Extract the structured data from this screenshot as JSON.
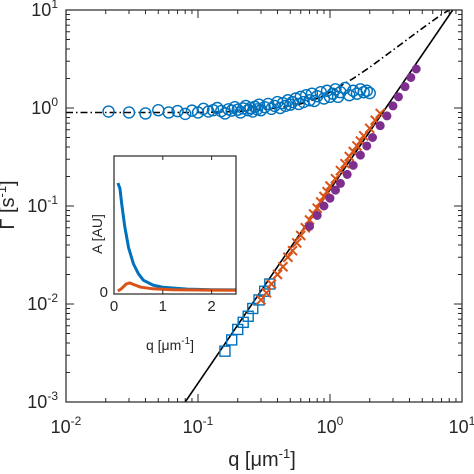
{
  "chart_data": [
    {
      "type": "scatter",
      "xscale": "log",
      "yscale": "log",
      "xlim": [
        0.01,
        10
      ],
      "ylim": [
        0.001,
        10
      ],
      "xlabel": "q [μm",
      "xlabel_sup": "-1",
      "xlabel_close": "]",
      "ylabel": "Γ [s",
      "ylabel_sup": "-1",
      "ylabel_close": "]",
      "x_ticks": [
        {
          "base": "10",
          "exp": "-2",
          "value": 0.01
        },
        {
          "base": "10",
          "exp": "-1",
          "value": 0.1
        },
        {
          "base": "10",
          "exp": "0",
          "value": 1
        },
        {
          "base": "10",
          "exp": "1",
          "value": 10
        }
      ],
      "y_ticks": [
        {
          "base": "10",
          "exp": "-3",
          "value": 0.001
        },
        {
          "base": "10",
          "exp": "-2",
          "value": 0.01
        },
        {
          "base": "10",
          "exp": "-1",
          "value": 0.1
        },
        {
          "base": "10",
          "exp": "0",
          "value": 1
        },
        {
          "base": "10",
          "exp": "1",
          "value": 10
        }
      ],
      "series": [
        {
          "marker": "circle",
          "color": "#0072BD",
          "points": [
            [
              0.021,
              0.92
            ],
            [
              0.03,
              0.9
            ],
            [
              0.04,
              0.88
            ],
            [
              0.05,
              0.95
            ],
            [
              0.06,
              0.9
            ],
            [
              0.07,
              0.93
            ],
            [
              0.08,
              0.87
            ],
            [
              0.09,
              0.94
            ],
            [
              0.1,
              0.9
            ],
            [
              0.11,
              0.98
            ],
            [
              0.12,
              0.92
            ],
            [
              0.13,
              0.95
            ],
            [
              0.14,
              1.0
            ],
            [
              0.15,
              0.93
            ],
            [
              0.16,
              0.88
            ],
            [
              0.17,
              0.97
            ],
            [
              0.18,
              0.94
            ],
            [
              0.19,
              1.02
            ],
            [
              0.2,
              0.96
            ],
            [
              0.21,
              0.9
            ],
            [
              0.22,
              0.99
            ],
            [
              0.23,
              1.05
            ],
            [
              0.24,
              0.95
            ],
            [
              0.25,
              1.0
            ],
            [
              0.26,
              0.92
            ],
            [
              0.27,
              1.03
            ],
            [
              0.28,
              0.97
            ],
            [
              0.29,
              1.08
            ],
            [
              0.3,
              0.95
            ],
            [
              0.32,
              1.02
            ],
            [
              0.34,
              1.1
            ],
            [
              0.36,
              0.98
            ],
            [
              0.38,
              1.05
            ],
            [
              0.4,
              1.15
            ],
            [
              0.42,
              1.0
            ],
            [
              0.44,
              1.12
            ],
            [
              0.46,
              1.05
            ],
            [
              0.48,
              1.2
            ],
            [
              0.5,
              1.08
            ],
            [
              0.52,
              1.15
            ],
            [
              0.55,
              1.25
            ],
            [
              0.58,
              1.1
            ],
            [
              0.6,
              1.3
            ],
            [
              0.63,
              1.15
            ],
            [
              0.66,
              1.35
            ],
            [
              0.7,
              1.2
            ],
            [
              0.73,
              1.4
            ],
            [
              0.76,
              1.18
            ],
            [
              0.8,
              1.32
            ],
            [
              0.85,
              1.45
            ],
            [
              0.9,
              1.25
            ],
            [
              0.95,
              1.5
            ],
            [
              1.0,
              1.3
            ],
            [
              1.05,
              1.4
            ],
            [
              1.1,
              1.55
            ],
            [
              1.15,
              1.3
            ],
            [
              1.2,
              1.45
            ],
            [
              1.3,
              1.6
            ],
            [
              1.4,
              1.35
            ],
            [
              1.5,
              1.5
            ],
            [
              1.6,
              1.4
            ],
            [
              1.7,
              1.55
            ],
            [
              1.8,
              1.45
            ],
            [
              1.9,
              1.5
            ],
            [
              2.0,
              1.42
            ]
          ]
        },
        {
          "marker": "square",
          "color": "#0072BD",
          "points": [
            [
              0.16,
              0.0033
            ],
            [
              0.18,
              0.0043
            ],
            [
              0.2,
              0.0055
            ],
            [
              0.22,
              0.0065
            ],
            [
              0.24,
              0.0075
            ],
            [
              0.26,
              0.009
            ],
            [
              0.29,
              0.011
            ],
            [
              0.32,
              0.0135
            ],
            [
              0.35,
              0.016
            ]
          ]
        },
        {
          "marker": "x",
          "color": "#D95319",
          "points": [
            [
              0.3,
              0.011
            ],
            [
              0.33,
              0.013
            ],
            [
              0.36,
              0.016
            ],
            [
              0.4,
              0.02
            ],
            [
              0.44,
              0.024
            ],
            [
              0.48,
              0.03
            ],
            [
              0.52,
              0.035
            ],
            [
              0.56,
              0.042
            ],
            [
              0.6,
              0.05
            ],
            [
              0.65,
              0.06
            ],
            [
              0.7,
              0.072
            ],
            [
              0.75,
              0.083
            ],
            [
              0.8,
              0.095
            ],
            [
              0.85,
              0.11
            ],
            [
              0.9,
              0.125
            ],
            [
              0.95,
              0.14
            ],
            [
              1.0,
              0.16
            ],
            [
              1.1,
              0.19
            ],
            [
              1.2,
              0.23
            ],
            [
              1.3,
              0.27
            ],
            [
              1.4,
              0.32
            ],
            [
              1.5,
              0.36
            ],
            [
              1.6,
              0.41
            ],
            [
              1.7,
              0.46
            ],
            [
              1.8,
              0.52
            ],
            [
              2.0,
              0.62
            ],
            [
              2.2,
              0.75
            ],
            [
              2.4,
              0.88
            ]
          ]
        },
        {
          "marker": "filled-circle",
          "color": "#7E2F8E",
          "points": [
            [
              0.7,
              0.062
            ],
            [
              0.8,
              0.08
            ],
            [
              0.9,
              0.1
            ],
            [
              1.0,
              0.12
            ],
            [
              1.1,
              0.145
            ],
            [
              1.2,
              0.17
            ],
            [
              1.35,
              0.21
            ],
            [
              1.5,
              0.26
            ],
            [
              1.7,
              0.33
            ],
            [
              1.9,
              0.41
            ],
            [
              2.1,
              0.5
            ],
            [
              2.4,
              0.66
            ],
            [
              2.7,
              0.83
            ],
            [
              3.0,
              1.05
            ],
            [
              3.3,
              1.3
            ],
            [
              3.7,
              1.65
            ],
            [
              4.1,
              2.05
            ],
            [
              4.5,
              2.5
            ]
          ]
        }
      ],
      "fit_lines": [
        {
          "style": "dash-dot",
          "color": "#000000",
          "points": [
            [
              0.01,
              0.9
            ],
            [
              0.1,
              0.9
            ],
            [
              0.2,
              0.92
            ],
            [
              0.4,
              1.0
            ],
            [
              0.6,
              1.1
            ],
            [
              0.8,
              1.25
            ],
            [
              1.0,
              1.45
            ],
            [
              1.5,
              2.0
            ],
            [
              2.0,
              2.6
            ],
            [
              3.0,
              3.9
            ],
            [
              5.0,
              6.5
            ],
            [
              7.0,
              9.0
            ],
            [
              8.0,
              10.0
            ]
          ]
        },
        {
          "style": "solid",
          "color": "#000000",
          "points": [
            [
              0.08,
              0.001
            ],
            [
              8.5,
              10.0
            ]
          ]
        }
      ]
    },
    {
      "type": "line",
      "inset": true,
      "xlim": [
        0,
        2.5
      ],
      "xlabel": "q [μm",
      "xlabel_sup": "-1",
      "xlabel_close": "]",
      "ylabel": "A [AU]",
      "x_ticks": [
        "0",
        "1",
        "2"
      ],
      "y_ticks": [
        "0"
      ],
      "series": [
        {
          "color": "#0072BD",
          "points": [
            [
              0.08,
              1.0
            ],
            [
              0.12,
              0.95
            ],
            [
              0.16,
              0.8
            ],
            [
              0.22,
              0.6
            ],
            [
              0.3,
              0.4
            ],
            [
              0.4,
              0.25
            ],
            [
              0.5,
              0.16
            ],
            [
              0.6,
              0.1
            ],
            [
              0.8,
              0.055
            ],
            [
              1.0,
              0.035
            ],
            [
              1.5,
              0.018
            ],
            [
              2.0,
              0.012
            ],
            [
              2.5,
              0.01
            ]
          ]
        },
        {
          "color": "#D95319",
          "points": [
            [
              0.08,
              0.0
            ],
            [
              0.15,
              0.02
            ],
            [
              0.25,
              0.065
            ],
            [
              0.32,
              0.075
            ],
            [
              0.4,
              0.06
            ],
            [
              0.55,
              0.035
            ],
            [
              0.8,
              0.02
            ],
            [
              1.2,
              0.012
            ],
            [
              2.0,
              0.008
            ],
            [
              2.5,
              0.007
            ]
          ]
        }
      ]
    }
  ]
}
